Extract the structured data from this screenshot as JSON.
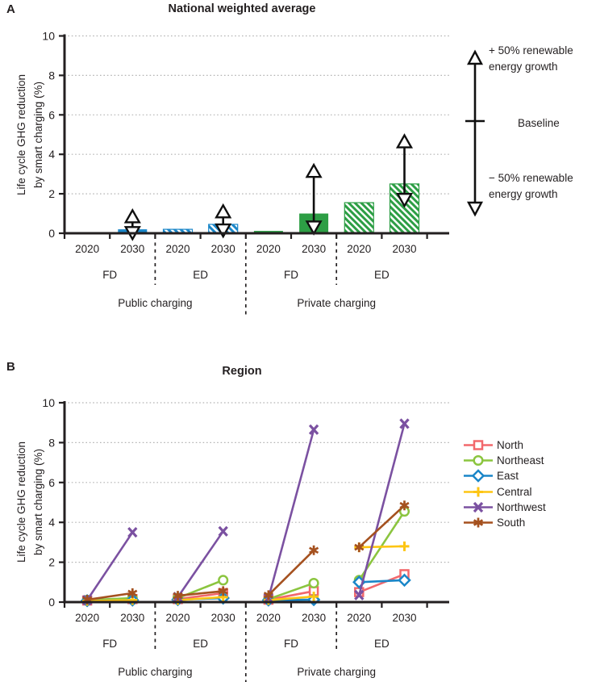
{
  "panels": {
    "a_letter": "A",
    "b_letter": "B"
  },
  "axes": {
    "ylabel_line1": "Life cycle GHG reduction",
    "ylabel_line2": "by smart charging (%)"
  },
  "panelA_legend": {
    "plus": "+ 50% renewable\nenergy growth",
    "baseline": "Baseline",
    "minus": "− 50% renewable\nenergy growth"
  },
  "chart_data": [
    {
      "type": "bar",
      "panel": "A",
      "title": "National weighted average",
      "ylabel": "Life cycle GHG reduction by smart charging (%)",
      "ylim": [
        0,
        10
      ],
      "yticks": [
        0,
        2,
        4,
        6,
        8,
        10
      ],
      "grid": "dotted horizontal",
      "group_labels": {
        "years": [
          "2020",
          "2030",
          "2020",
          "2030",
          "2020",
          "2030",
          "2020",
          "2030"
        ],
        "duration": [
          "FD",
          "ED",
          "FD",
          "ED"
        ],
        "charging": [
          "Public charging",
          "Private charging"
        ]
      },
      "bars": [
        {
          "category": "Public charging FD 2020",
          "value": 0.04,
          "color": "#1a86c8",
          "hatched": false
        },
        {
          "category": "Public charging FD 2030",
          "value": 0.2,
          "color": "#1a86c8",
          "hatched": false,
          "whisker_low": 0.07,
          "whisker_high": 0.8
        },
        {
          "category": "Public charging ED 2020",
          "value": 0.2,
          "color": "#1a86c8",
          "hatched": true
        },
        {
          "category": "Public charging ED 2030",
          "value": 0.45,
          "color": "#1a86c8",
          "hatched": true,
          "whisker_low": 0.2,
          "whisker_high": 1.05
        },
        {
          "category": "Private charging FD 2020",
          "value": 0.12,
          "color": "#2d9e45",
          "hatched": false
        },
        {
          "category": "Private charging FD 2030",
          "value": 1.0,
          "color": "#2d9e45",
          "hatched": false,
          "whisker_low": 0.35,
          "whisker_high": 3.1
        },
        {
          "category": "Private charging ED 2020",
          "value": 1.55,
          "color": "#2d9e45",
          "hatched": true
        },
        {
          "category": "Private charging ED 2030",
          "value": 2.5,
          "color": "#2d9e45",
          "hatched": true,
          "whisker_low": 1.75,
          "whisker_high": 4.6
        }
      ],
      "whisker_legend": [
        {
          "symbol": "triangle-up",
          "label": "+ 50% renewable energy growth"
        },
        {
          "symbol": "tick",
          "label": "Baseline"
        },
        {
          "symbol": "triangle-down",
          "label": "− 50% renewable energy growth"
        }
      ]
    },
    {
      "type": "line",
      "panel": "B",
      "title": "Region",
      "ylabel": "Life cycle GHG reduction by smart charging (%)",
      "ylim": [
        0,
        10
      ],
      "yticks": [
        0,
        2,
        4,
        6,
        8,
        10
      ],
      "grid": "dotted horizontal",
      "line_segments": "points are connected 2020→2030 within each group only",
      "categories": [
        "Public FD 2020",
        "Public FD 2030",
        "Public ED 2020",
        "Public ED 2030",
        "Private FD 2020",
        "Private FD 2030",
        "Private ED 2020",
        "Private ED 2030"
      ],
      "group_labels": {
        "years": [
          "2020",
          "2030",
          "2020",
          "2030",
          "2020",
          "2030",
          "2020",
          "2030"
        ],
        "duration": [
          "FD",
          "ED",
          "FD",
          "ED"
        ],
        "charging": [
          "Public charging",
          "Private charging"
        ]
      },
      "series": [
        {
          "name": "North",
          "color": "#f2686c",
          "marker": "square",
          "values": [
            0.08,
            0.15,
            0.15,
            0.45,
            0.12,
            0.55,
            0.5,
            1.4
          ]
        },
        {
          "name": "Northeast",
          "color": "#8bc53f",
          "marker": "circle",
          "values": [
            0.1,
            0.2,
            0.2,
            1.1,
            0.15,
            0.95,
            1.1,
            4.55
          ]
        },
        {
          "name": "East",
          "color": "#1a86c8",
          "marker": "diamond",
          "values": [
            0.07,
            0.1,
            0.12,
            0.2,
            0.1,
            0.12,
            1.0,
            1.1
          ]
        },
        {
          "name": "Central",
          "color": "#fdc513",
          "marker": "plus",
          "values": [
            0.06,
            0.1,
            0.1,
            0.25,
            0.1,
            0.28,
            2.75,
            2.8
          ]
        },
        {
          "name": "Northwest",
          "color": "#7b51a1",
          "marker": "x",
          "values": [
            0.1,
            3.5,
            0.25,
            3.55,
            0.2,
            8.65,
            0.35,
            8.95
          ]
        },
        {
          "name": "South",
          "color": "#a5511f",
          "marker": "asterisk",
          "values": [
            0.12,
            0.45,
            0.32,
            0.55,
            0.35,
            2.6,
            2.75,
            4.85
          ]
        }
      ],
      "legend_position": "right"
    }
  ]
}
